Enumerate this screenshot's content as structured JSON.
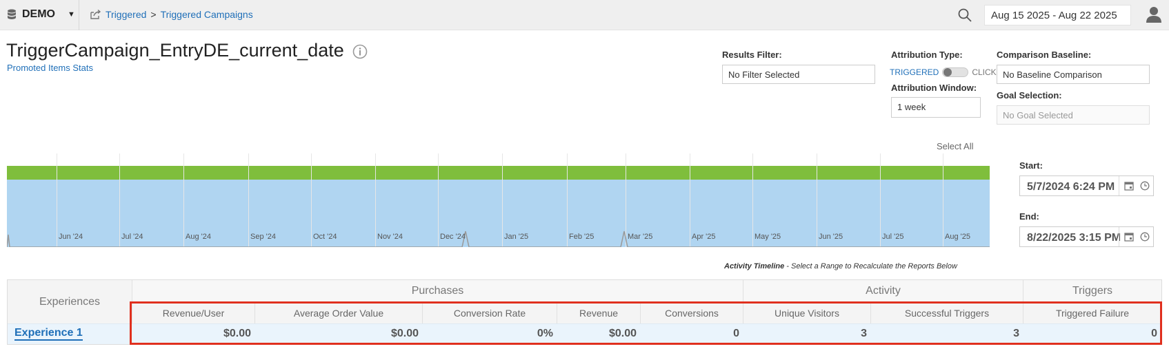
{
  "topbar": {
    "brand": "DEMO",
    "breadcrumb": [
      "Triggered",
      "Triggered Campaigns"
    ],
    "breadcrumb_sep": ">",
    "date_range": "Aug 15 2025 - Aug 22 2025"
  },
  "page": {
    "title": "TriggerCampaign_EntryDE_current_date",
    "subtitle": "Promoted Items Stats"
  },
  "filters": {
    "results_filter_label": "Results Filter:",
    "results_filter_value": "No Filter Selected",
    "attribution_type_label": "Attribution Type:",
    "attribution_on": "TRIGGERED",
    "attribution_off": "CLICK",
    "attribution_window_label": "Attribution Window:",
    "attribution_window_value": "1 week",
    "comparison_label": "Comparison Baseline:",
    "comparison_value": "No Baseline Comparison",
    "goal_label": "Goal Selection:",
    "goal_value": "No Goal Selected"
  },
  "timeline": {
    "select_all": "Select All",
    "months": [
      "Jun '24",
      "Jul '24",
      "Aug '24",
      "Sep '24",
      "Oct '24",
      "Nov '24",
      "Dec '24",
      "Jan '25",
      "Feb '25",
      "Mar '25",
      "Apr '25",
      "May '25",
      "Jun '25",
      "Jul '25",
      "Aug '25"
    ],
    "start_label": "Start:",
    "start_value": "5/7/2024 6:24 PM",
    "end_label": "End:",
    "end_value": "8/22/2025 3:15 PM",
    "caption_bold": "Activity Timeline",
    "caption_rest": " - Select a Range to Recalculate the Reports Below"
  },
  "table": {
    "experiences_header": "Experiences",
    "groups": [
      "Purchases",
      "Activity",
      "Triggers"
    ],
    "columns": [
      "Revenue/User",
      "Average Order Value",
      "Conversion Rate",
      "Revenue",
      "Conversions",
      "Unique Visitors",
      "Successful Triggers",
      "Triggered Failure"
    ],
    "rows": [
      {
        "name": "Experience 1",
        "values": [
          "$0.00",
          "$0.00",
          "0%",
          "$0.00",
          "0",
          "3",
          "3",
          "0"
        ]
      }
    ]
  },
  "colors": {
    "link": "#1f6fb8",
    "timeline_fill": "#b0d5f1",
    "timeline_band": "#7fbe3c",
    "highlight": "#e0301e"
  }
}
